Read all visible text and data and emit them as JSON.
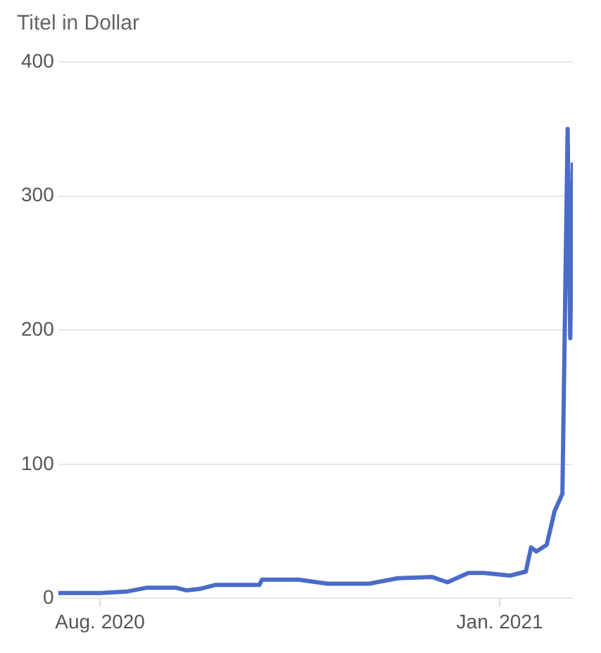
{
  "chart_data": {
    "type": "line",
    "title": "Titel in Dollar",
    "x": [
      "2020-07-16",
      "2020-08-01",
      "2020-08-11",
      "2020-08-19",
      "2020-08-30",
      "2020-09-03",
      "2020-09-08",
      "2020-09-14",
      "2020-09-27",
      "2020-10-01",
      "2020-10-02",
      "2020-10-16",
      "2020-10-27",
      "2020-11-12",
      "2020-11-23",
      "2020-12-06",
      "2020-12-12",
      "2020-12-20",
      "2020-12-26",
      "2021-01-05",
      "2021-01-11",
      "2021-01-13",
      "2021-01-15",
      "2021-01-19",
      "2021-01-22",
      "2021-01-25",
      "2021-01-27",
      "2021-01-28",
      "2021-01-29"
    ],
    "series": [
      {
        "color": "#4a6bc8",
        "values": [
          4,
          4,
          5,
          8,
          8,
          6,
          7,
          10,
          10,
          10,
          14,
          14,
          11,
          11,
          15,
          16,
          12,
          19,
          19,
          17,
          20,
          38,
          35,
          40,
          65,
          78,
          350,
          194,
          325
        ]
      }
    ],
    "xlim": [
      "2020-07-16",
      "2021-01-29"
    ],
    "xticks": [
      {
        "value": "2020-08-01",
        "label": "Aug. 2020"
      },
      {
        "value": "2021-01-01",
        "label": "Jan. 2021"
      }
    ],
    "ylim": [
      0,
      400
    ],
    "yticks": [
      0,
      100,
      200,
      300,
      400
    ],
    "grid": "y",
    "legend": false,
    "marker": "none",
    "line_style": "solid"
  }
}
